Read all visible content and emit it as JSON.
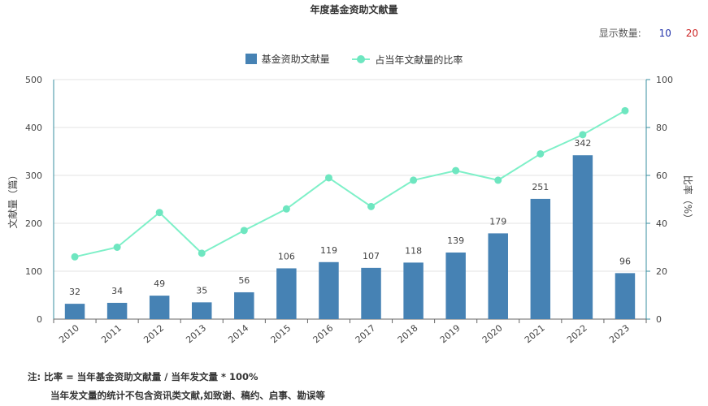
{
  "title": "年度基金资助文献量",
  "display_count": {
    "label": "显示数量:",
    "option_10": "10",
    "option_20": "20"
  },
  "legend": {
    "bar_label": "基金资助文献量",
    "line_label": "占当年文献量的比率"
  },
  "notes": {
    "line1": "注:   比率 = 当年基金资助文献量 / 当年发文量 * 100%",
    "line2": "当年发文量的统计不包含资讯类文献,如致谢、稿约、启事、勘误等"
  },
  "colors": {
    "bar": "#4682b4",
    "line": "#7ef0c8",
    "marker": "#6ee6c0",
    "axis": "#3a8fa0"
  },
  "chart_data": {
    "type": "bar",
    "title": "年度基金资助文献量",
    "categories": [
      "2010",
      "2011",
      "2012",
      "2013",
      "2014",
      "2015",
      "2016",
      "2017",
      "2018",
      "2019",
      "2020",
      "2021",
      "2022",
      "2023"
    ],
    "series": [
      {
        "name": "基金资助文献量",
        "type": "bar",
        "axis": "left",
        "values": [
          32,
          34,
          49,
          35,
          56,
          106,
          119,
          107,
          118,
          139,
          179,
          251,
          342,
          96
        ]
      },
      {
        "name": "占当年文献量的比率",
        "type": "line",
        "axis": "right",
        "values": [
          26,
          30,
          44.5,
          27.5,
          37,
          46,
          59,
          47,
          58,
          62,
          58,
          69,
          77,
          87
        ]
      }
    ],
    "ylabel": "文献量（篇）",
    "y2label": "比率（%）",
    "ylim": [
      0,
      500
    ],
    "y2lim": [
      0,
      100
    ],
    "yticks": [
      0,
      100,
      200,
      300,
      400,
      500
    ],
    "y2ticks": [
      0,
      20,
      40,
      60,
      80,
      100
    ],
    "grid": true,
    "legend_position": "top-center"
  }
}
